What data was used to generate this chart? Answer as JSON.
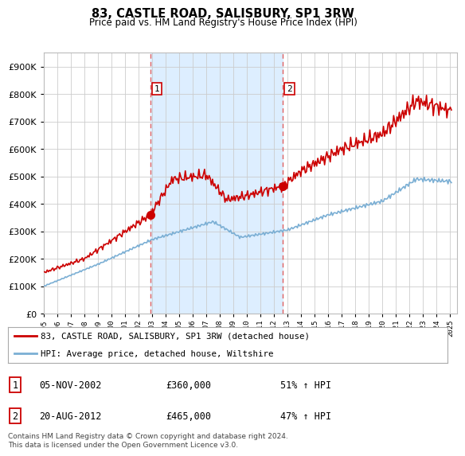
{
  "title": "83, CASTLE ROAD, SALISBURY, SP1 3RW",
  "subtitle": "Price paid vs. HM Land Registry's House Price Index (HPI)",
  "yticks": [
    0,
    100000,
    200000,
    300000,
    400000,
    500000,
    600000,
    700000,
    800000,
    900000
  ],
  "ylim": [
    0,
    950000
  ],
  "xlim_start": 1995.0,
  "xlim_end": 2025.5,
  "sale1_date": 2002.85,
  "sale1_price": 360000,
  "sale1_label": "1",
  "sale1_date_str": "05-NOV-2002",
  "sale1_hpi": "51% ↑ HPI",
  "sale2_date": 2012.63,
  "sale2_price": 465000,
  "sale2_label": "2",
  "sale2_date_str": "20-AUG-2012",
  "sale2_hpi": "47% ↑ HPI",
  "hpi_line_color": "#7bafd4",
  "price_line_color": "#cc0000",
  "vline_color": "#e06060",
  "shade_color": "#ddeeff",
  "background_color": "#ffffff",
  "grid_color": "#cccccc",
  "legend_label_price": "83, CASTLE ROAD, SALISBURY, SP1 3RW (detached house)",
  "legend_label_hpi": "HPI: Average price, detached house, Wiltshire",
  "footnote": "Contains HM Land Registry data © Crown copyright and database right 2024.\nThis data is licensed under the Open Government Licence v3.0."
}
